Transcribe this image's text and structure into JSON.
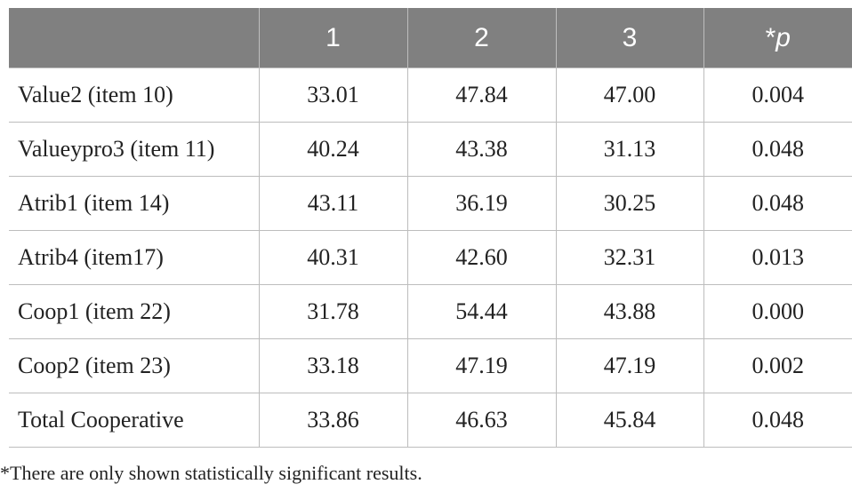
{
  "table": {
    "header": [
      "1",
      "2",
      "3"
    ],
    "header_p": {
      "prefix": "*",
      "italic": "p"
    },
    "rows": [
      [
        "Value2 (item 10)",
        "33.01",
        "47.84",
        "47.00",
        "0.004"
      ],
      [
        "Valueypro3 (item 11)",
        "40.24",
        "43.38",
        "31.13",
        "0.048"
      ],
      [
        "Atrib1 (item 14)",
        "43.11",
        "36.19",
        "30.25",
        "0.048"
      ],
      [
        "Atrib4 (item17)",
        "40.31",
        "42.60",
        "32.31",
        "0.013"
      ],
      [
        "Coop1 (item 22)",
        "31.78",
        "54.44",
        "43.88",
        "0.000"
      ],
      [
        "Coop2 (item 23)",
        "33.18",
        "47.19",
        "47.19",
        "0.002"
      ],
      [
        "Total Cooperative",
        "33.86",
        "46.63",
        "45.84",
        "0.048"
      ]
    ],
    "footnote": "*There are only shown statistically significant results."
  }
}
